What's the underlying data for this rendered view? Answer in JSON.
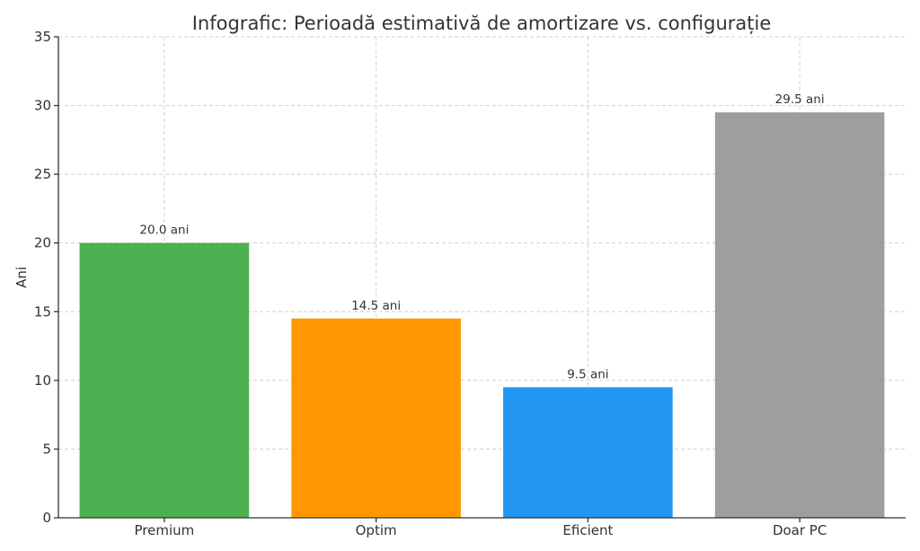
{
  "chart_data": {
    "type": "bar",
    "title": "Infografic: Perioadă estimativă de amortizare vs. configurație",
    "xlabel": "",
    "ylabel": "Ani",
    "ylim": [
      0,
      35
    ],
    "yticks": [
      0,
      5,
      10,
      15,
      20,
      25,
      30,
      35
    ],
    "categories": [
      "Premium",
      "Optim",
      "Eficient",
      "Doar PC"
    ],
    "values": [
      20.0,
      14.5,
      9.5,
      29.5
    ],
    "data_labels": [
      "20.0 ani",
      "14.5 ani",
      "9.5 ani",
      "29.5 ani"
    ],
    "colors": [
      "#4caf50",
      "#ff9800",
      "#2196f3",
      "#9e9e9e"
    ],
    "grid": true,
    "legend": "none"
  }
}
